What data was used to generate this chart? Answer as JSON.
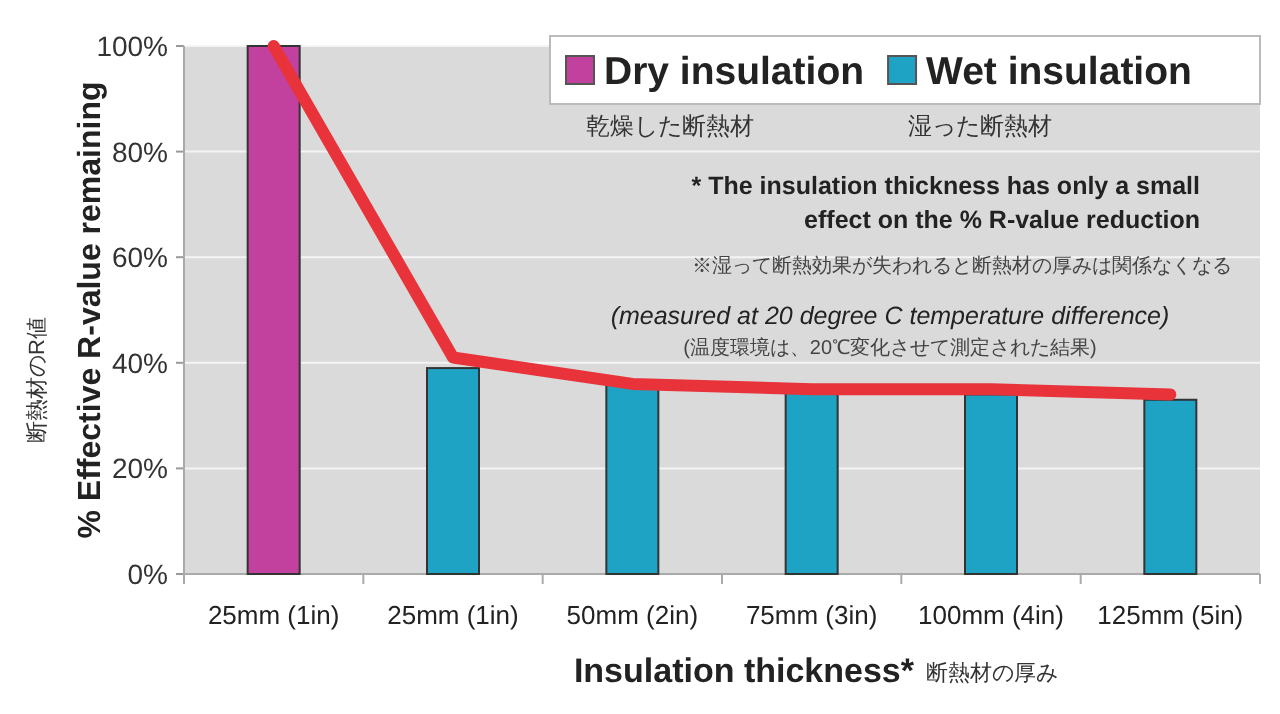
{
  "chart_data": {
    "type": "bar",
    "ylabel": "% Effective R-value remaining",
    "xlabel": "Insulation thickness*",
    "categories": [
      "25mm (1in)",
      "25mm (1in)",
      "50mm (2in)",
      "75mm (3in)",
      "100mm (4in)",
      "125mm (5in)"
    ],
    "series": [
      {
        "name": "Dry insulation",
        "color": "#c2409e",
        "values": [
          100,
          null,
          null,
          null,
          null,
          null
        ]
      },
      {
        "name": "Wet insulation",
        "color": "#1fa3c4",
        "values": [
          null,
          39,
          36,
          35,
          34,
          33
        ]
      },
      {
        "type": "line",
        "color": "#e8333a",
        "values": [
          100,
          41,
          36,
          35,
          35,
          34
        ]
      }
    ],
    "ylim": [
      0,
      100
    ],
    "yticks": [
      {
        "value": 0,
        "label": "0%"
      },
      {
        "value": 20,
        "label": "20%"
      },
      {
        "value": 40,
        "label": "40%"
      },
      {
        "value": 60,
        "label": "60%"
      },
      {
        "value": 80,
        "label": "80%"
      },
      {
        "value": 100,
        "label": "100%"
      }
    ],
    "grid": "y",
    "legend": "top right",
    "annotations": [
      "乾燥した断熱材",
      "湿った断熱材",
      "* The insulation thickness has only a small effect on the % R-value reduction",
      "※湿って断熱効果が失われると断熱材の厚みは関係なくなる",
      "(measured at 20 degree C temperature difference)",
      "(温度環境は、20℃変化させて測定された結果)",
      "断熱材のR値",
      "断熱材の厚み"
    ]
  }
}
